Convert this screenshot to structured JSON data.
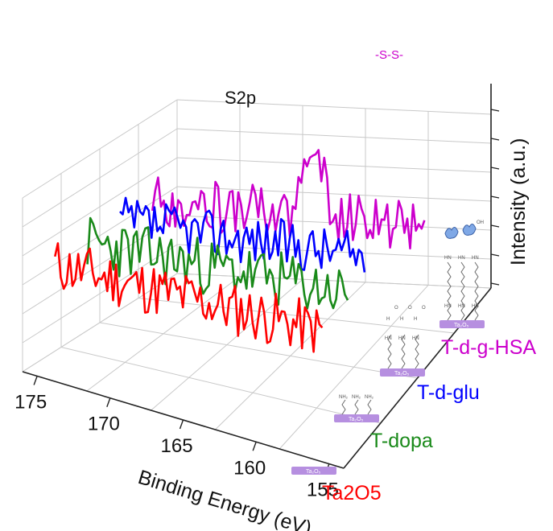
{
  "chart_data": {
    "type": "line",
    "title": "",
    "xlabel": "Binding Energy (eV)",
    "ylabel": "Intensity (a.u.)",
    "x_ticks": [
      175,
      170,
      165,
      160,
      155
    ],
    "xlim": [
      176,
      154
    ],
    "x_step": 0.2,
    "inset_text": "S2p",
    "peak_annotation": "-S-S-",
    "substrate_label": "Ta₂O₅",
    "molecule_atoms": {
      "amine": "NH₂",
      "imine": "HN",
      "hydroxyl": "OH",
      "hydrogen": "H",
      "oxygen": "O"
    },
    "grid": true,
    "colors": {
      "Ta2O5": "#ff0000",
      "T-dopa": "#1a8a1a",
      "T-d-glu": "#0000ff",
      "T-d-g-HSA": "#cc00cc"
    },
    "series": [
      {
        "name": "Ta2O5",
        "color": "#ff0000",
        "level": 0,
        "x_start": 176,
        "x_end": 157.5,
        "base": 0.58,
        "noise": 0.38,
        "peak_center": 0,
        "peak_height": 0,
        "seed": 11
      },
      {
        "name": "T-dopa",
        "color": "#1a8a1a",
        "level": 1,
        "x_start": 176,
        "x_end": 158,
        "base": 0.6,
        "noise": 0.4,
        "peak_center": 0,
        "peak_height": 0,
        "seed": 23
      },
      {
        "name": "T-d-glu",
        "color": "#0000ff",
        "level": 2,
        "x_start": 176,
        "x_end": 159,
        "base": 0.62,
        "noise": 0.34,
        "peak_center": 0,
        "peak_height": 0,
        "seed": 37
      },
      {
        "name": "T-d-g-HSA",
        "color": "#cc00cc",
        "level": 3,
        "x_start": 176,
        "x_end": 157,
        "base": 0.6,
        "noise": 0.36,
        "peak_center": 164.8,
        "peak_height": 0.95,
        "seed": 53
      }
    ]
  }
}
